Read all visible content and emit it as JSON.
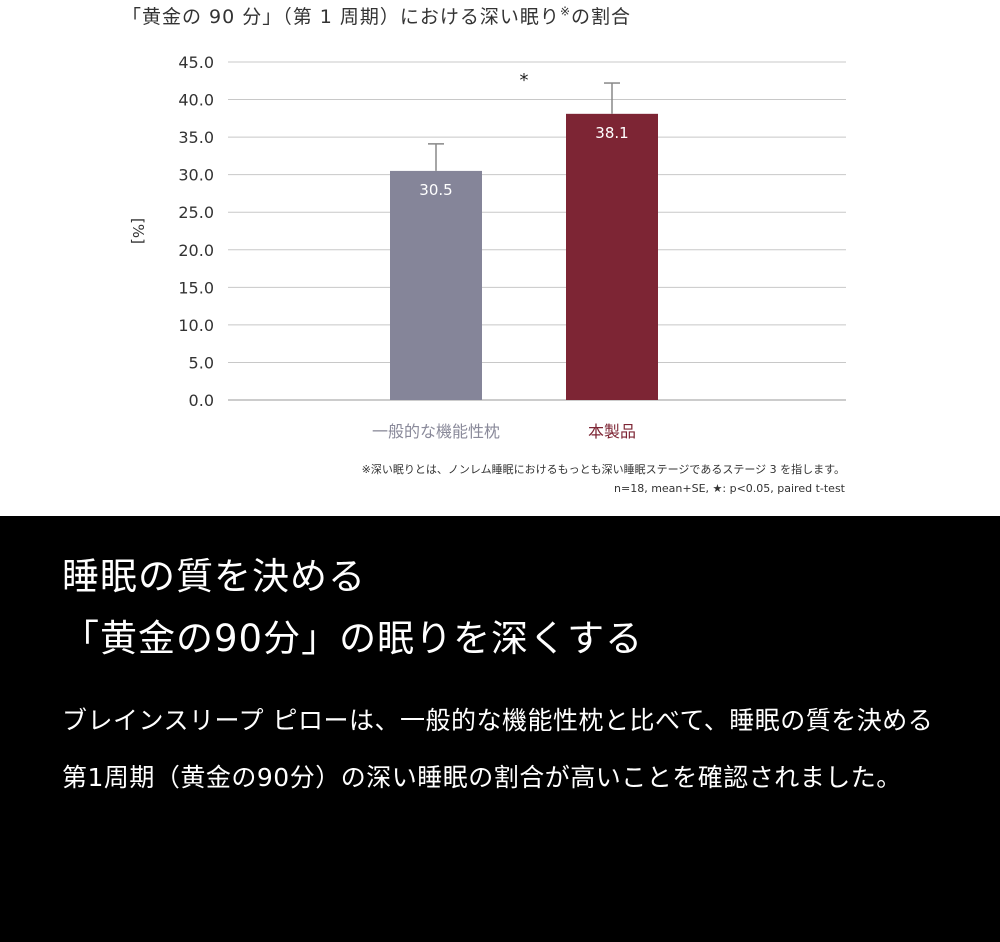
{
  "chart_title": "「黄金の 90 分」（第 1 周期）における深い眠り",
  "chart_title_mark": "※",
  "chart_title_suffix": "の割合",
  "chart_data": {
    "type": "bar",
    "categories": [
      "一般的な機能性枕",
      "本製品"
    ],
    "values": [
      30.5,
      38.1
    ],
    "error_bars_se": [
      3.6,
      4.1
    ],
    "data_labels": [
      "30.5",
      "38.1"
    ],
    "bar_colors": [
      "#858599",
      "#7d2534"
    ],
    "category_label_colors": [
      "#8a8a9a",
      "#7d2534"
    ],
    "ylabel": "[%]",
    "ylim": [
      0,
      45
    ],
    "yticks": [
      "0.0",
      "5.0",
      "10.0",
      "15.0",
      "20.0",
      "25.0",
      "30.0",
      "35.0",
      "40.0",
      "45.0"
    ],
    "grid": true,
    "significance_mark": "*"
  },
  "notes": {
    "line1": "※深い眠りとは、ノンレム睡眠におけるもっとも深い睡眠ステージであるステージ 3 を指します。",
    "line2": "n=18, mean+SE, ★: p<0.05, paired t-test"
  },
  "headline": {
    "line1": "睡眠の質を決める",
    "line2": "「黄金の90分」の眠りを深くする"
  },
  "body": "ブレインスリープ ピローは、一般的な機能性枕と比べて、睡眠の質を決める第1周期（黄金の90分）の深い睡眠の割合が高いことを確認されました。"
}
